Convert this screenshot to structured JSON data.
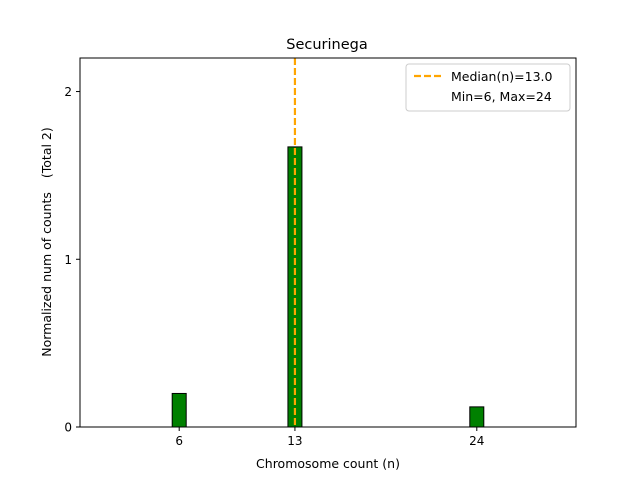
{
  "chart_data": {
    "type": "bar",
    "title": "Securinega",
    "xlabel": "Chromosome count (n)",
    "ylabel": "Normalized num of counts",
    "ylabel_note": "(Total 2)",
    "x_ticks": [
      "6",
      "13",
      "24"
    ],
    "y_ticks": [
      "0",
      "1",
      "2"
    ],
    "xlim": [
      0,
      30
    ],
    "ylim": [
      0,
      2.2
    ],
    "bars": [
      {
        "x": 6,
        "value": 0.2
      },
      {
        "x": 13,
        "value": 1.67
      },
      {
        "x": 24,
        "value": 0.12
      }
    ],
    "bar_color": "#008000",
    "median": 13.0,
    "median_color": "#FFA500",
    "legend": {
      "placement": "top-right",
      "entries": [
        "Median(n)=13.0",
        "Min=6, Max=24"
      ]
    },
    "grid": false
  }
}
